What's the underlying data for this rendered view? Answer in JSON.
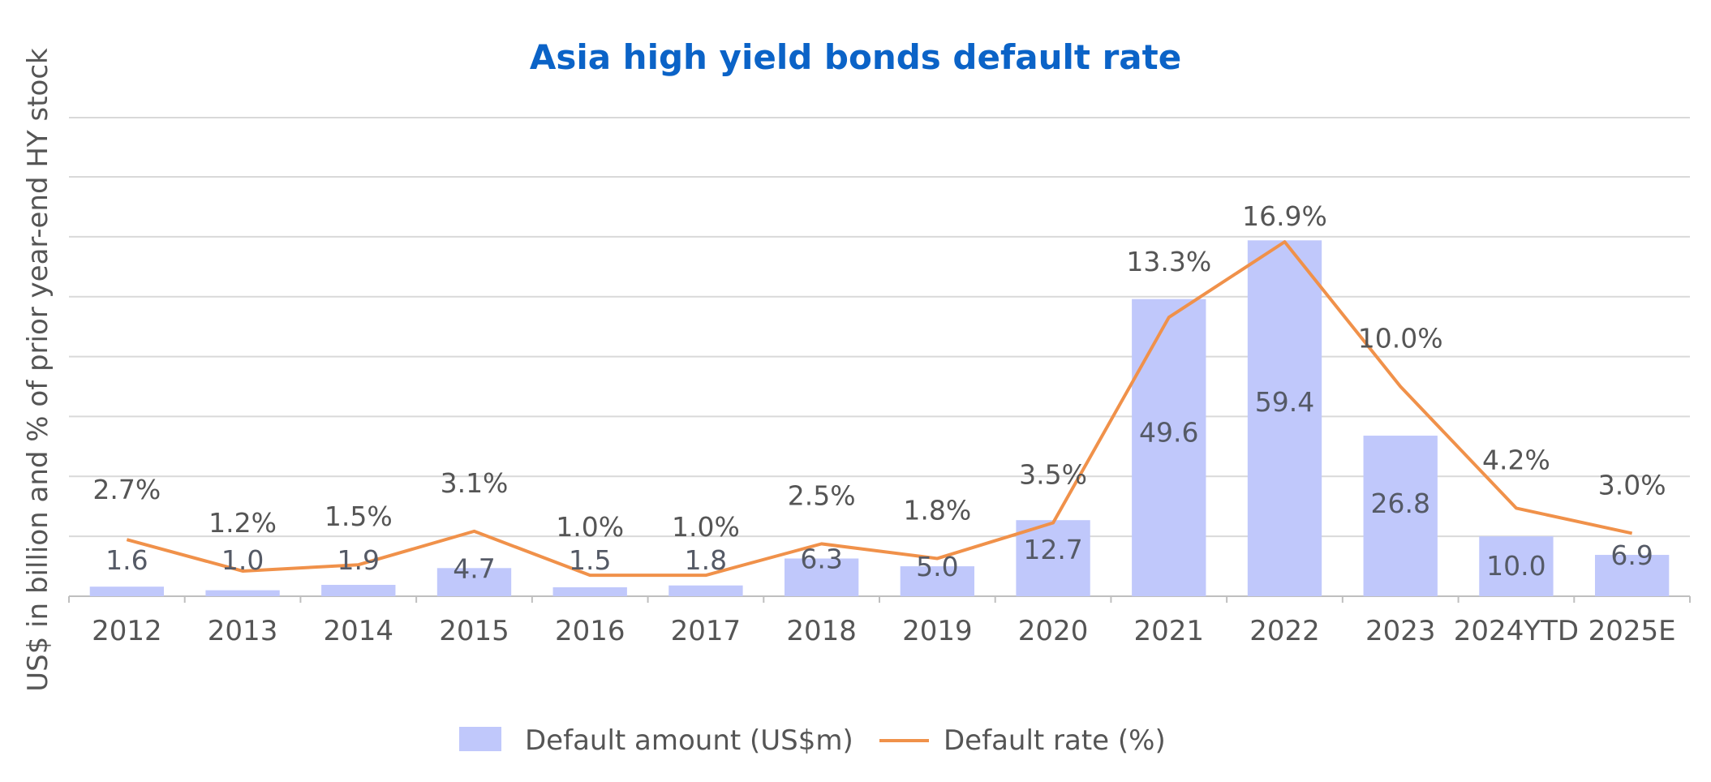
{
  "chart_data": {
    "type": "bar",
    "title": "Asia high yield bonds default rate",
    "ylabel": "US$ in billion and % of prior year-end HY stock",
    "xlabel": "",
    "categories": [
      "2012",
      "2013",
      "2014",
      "2015",
      "2016",
      "2017",
      "2018",
      "2019",
      "2020",
      "2021",
      "2022",
      "2023",
      "2024YTD",
      "2025E"
    ],
    "ylim": [
      0,
      70
    ],
    "grid": true,
    "legend_position": "bottom",
    "series": [
      {
        "name": "Default amount (US$m)",
        "type": "bar",
        "color": "#c0c8fb",
        "values": [
          1.6,
          1.0,
          1.9,
          4.7,
          1.5,
          1.8,
          6.3,
          5.0,
          12.7,
          49.6,
          59.4,
          26.8,
          10.0,
          6.9
        ],
        "labels": [
          "1.6",
          "1.0",
          "1.9",
          "4.7",
          "1.5",
          "1.8",
          "6.3",
          "5.0",
          "12.7",
          "49.6",
          "59.4",
          "26.8",
          "10.0",
          "6.9"
        ]
      },
      {
        "name": "Default rate (%)",
        "type": "line",
        "color": "#f0914a",
        "values": [
          2.7,
          1.2,
          1.5,
          3.1,
          1.0,
          1.0,
          2.5,
          1.8,
          3.5,
          13.3,
          16.9,
          10.0,
          4.2,
          3.0
        ],
        "labels": [
          "2.7%",
          "1.2%",
          "1.5%",
          "3.1%",
          "1.0%",
          "1.0%",
          "2.5%",
          "1.8%",
          "3.5%",
          "13.3%",
          "16.9%",
          "10.0%",
          "4.2%",
          "3.0%"
        ]
      }
    ]
  }
}
